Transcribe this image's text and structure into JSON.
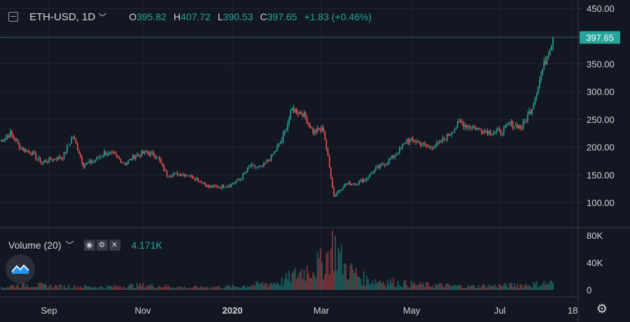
{
  "header": {
    "symbol": "ETH-USD, 1D",
    "open_key": "O",
    "open": "395.82",
    "high_key": "H",
    "high": "407.72",
    "low_key": "L",
    "low": "390.53",
    "close_key": "C",
    "close": "397.65",
    "change": "+1.83 (+0.46%)"
  },
  "volume_panel": {
    "label": "Volume (20)",
    "value": "4.171K"
  },
  "icons": {
    "collapse": "minus-square-icon",
    "settings": "gear-icon",
    "eye": "eye-icon",
    "logo": "tradingview-logo-icon"
  },
  "colors": {
    "bg": "#131722",
    "up": "#26a69a",
    "down": "#ef5350",
    "grid": "#232632",
    "text": "#d1d4dc"
  },
  "chart_data": {
    "type": "candlestick",
    "series": [
      {
        "name": "ETH-USD"
      }
    ],
    "price_axis": {
      "ticks": [
        100,
        150,
        200,
        250,
        300,
        350,
        400,
        450
      ],
      "ylim": [
        80,
        450
      ]
    },
    "current_price": 397.65,
    "price_tick_labels": [
      "100.00",
      "150.00",
      "200.00",
      "250.00",
      "300.00",
      "350.00",
      "400.00",
      "450.00"
    ],
    "volume_axis": {
      "ticks": [
        0,
        40000,
        80000
      ],
      "labels": [
        "0",
        "40K",
        "80K"
      ]
    },
    "time_axis": [
      "Sep",
      "Nov",
      "2020",
      "Mar",
      "May",
      "Jul",
      "18"
    ],
    "close_series": [
      {
        "date": "2019-08-01",
        "close": 210
      },
      {
        "date": "2019-08-08",
        "close": 225
      },
      {
        "date": "2019-08-15",
        "close": 198
      },
      {
        "date": "2019-08-22",
        "close": 190
      },
      {
        "date": "2019-08-29",
        "close": 172
      },
      {
        "date": "2019-09-05",
        "close": 178
      },
      {
        "date": "2019-09-12",
        "close": 182
      },
      {
        "date": "2019-09-19",
        "close": 220
      },
      {
        "date": "2019-09-26",
        "close": 168
      },
      {
        "date": "2019-10-03",
        "close": 175
      },
      {
        "date": "2019-10-10",
        "close": 190
      },
      {
        "date": "2019-10-17",
        "close": 185
      },
      {
        "date": "2019-10-24",
        "close": 170
      },
      {
        "date": "2019-10-31",
        "close": 185
      },
      {
        "date": "2019-11-07",
        "close": 190
      },
      {
        "date": "2019-11-14",
        "close": 185
      },
      {
        "date": "2019-11-21",
        "close": 150
      },
      {
        "date": "2019-11-28",
        "close": 152
      },
      {
        "date": "2019-12-05",
        "close": 150
      },
      {
        "date": "2019-12-12",
        "close": 142
      },
      {
        "date": "2019-12-19",
        "close": 128
      },
      {
        "date": "2019-12-26",
        "close": 128
      },
      {
        "date": "2020-01-02",
        "close": 132
      },
      {
        "date": "2020-01-09",
        "close": 142
      },
      {
        "date": "2020-01-16",
        "close": 166
      },
      {
        "date": "2020-01-23",
        "close": 162
      },
      {
        "date": "2020-01-30",
        "close": 182
      },
      {
        "date": "2020-02-06",
        "close": 212
      },
      {
        "date": "2020-02-13",
        "close": 268
      },
      {
        "date": "2020-02-20",
        "close": 262
      },
      {
        "date": "2020-02-27",
        "close": 228
      },
      {
        "date": "2020-03-05",
        "close": 232
      },
      {
        "date": "2020-03-12",
        "close": 112
      },
      {
        "date": "2020-03-19",
        "close": 132
      },
      {
        "date": "2020-03-26",
        "close": 135
      },
      {
        "date": "2020-04-02",
        "close": 142
      },
      {
        "date": "2020-04-09",
        "close": 160
      },
      {
        "date": "2020-04-16",
        "close": 172
      },
      {
        "date": "2020-04-23",
        "close": 188
      },
      {
        "date": "2020-04-30",
        "close": 212
      },
      {
        "date": "2020-05-07",
        "close": 210
      },
      {
        "date": "2020-05-14",
        "close": 200
      },
      {
        "date": "2020-05-21",
        "close": 205
      },
      {
        "date": "2020-05-28",
        "close": 222
      },
      {
        "date": "2020-06-04",
        "close": 244
      },
      {
        "date": "2020-06-11",
        "close": 238
      },
      {
        "date": "2020-06-18",
        "close": 232
      },
      {
        "date": "2020-06-25",
        "close": 228
      },
      {
        "date": "2020-07-02",
        "close": 228
      },
      {
        "date": "2020-07-09",
        "close": 242
      },
      {
        "date": "2020-07-16",
        "close": 236
      },
      {
        "date": "2020-07-23",
        "close": 272
      },
      {
        "date": "2020-07-30",
        "close": 340
      },
      {
        "date": "2020-08-06",
        "close": 398
      }
    ],
    "volume_series": [
      {
        "date": "2019-08-01",
        "v": 4000
      },
      {
        "date": "2019-08-15",
        "v": 9000
      },
      {
        "date": "2019-09-12",
        "v": 6000
      },
      {
        "date": "2019-10-10",
        "v": 5000
      },
      {
        "date": "2019-11-07",
        "v": 8000
      },
      {
        "date": "2019-12-05",
        "v": 4000
      },
      {
        "date": "2020-01-09",
        "v": 6000
      },
      {
        "date": "2020-02-06",
        "v": 14000
      },
      {
        "date": "2020-02-20",
        "v": 32000
      },
      {
        "date": "2020-03-05",
        "v": 46000
      },
      {
        "date": "2020-03-12",
        "v": 78000
      },
      {
        "date": "2020-03-19",
        "v": 40000
      },
      {
        "date": "2020-04-02",
        "v": 18000
      },
      {
        "date": "2020-05-07",
        "v": 9000
      },
      {
        "date": "2020-06-11",
        "v": 6000
      },
      {
        "date": "2020-07-23",
        "v": 9000
      },
      {
        "date": "2020-08-06",
        "v": 12000
      }
    ]
  }
}
